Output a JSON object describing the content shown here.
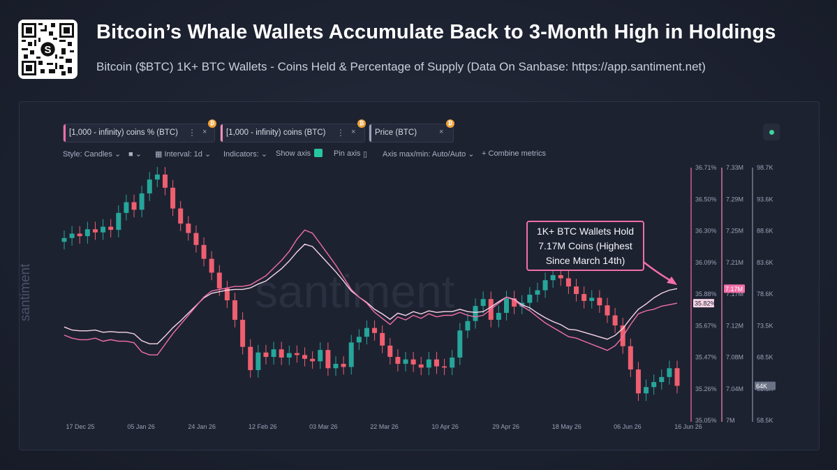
{
  "header": {
    "title": "Bitcoin’s Whale Wallets Accumulate Back to 3-Month High in Holdings",
    "subtitle": "Bitcoin ($BTC) 1K+ BTC Wallets - Coins Held & Percentage of Supply (Data On Sanbase: https://app.santiment.net)"
  },
  "metric_tabs": [
    {
      "label": "[1,000 - infinity) coins % (BTC)",
      "color": "#f26fa8"
    },
    {
      "label": "[1,000 - infinity) coins (BTC)",
      "color": "#f48fb8"
    },
    {
      "label": "Price (BTC)",
      "color": "#9aa2b5"
    }
  ],
  "toolbar": {
    "style": "Style: Candles",
    "interval": "Interval: 1d",
    "indicators": "Indicators:",
    "show_axis": "Show axis",
    "pin_axis": "Pin axis",
    "axis_minmax": "Axis max/min: Auto/Auto",
    "combine": "Combine metrics"
  },
  "watermark": "santiment",
  "annotation": {
    "lines": [
      "1K+ BTC Wallets Hold",
      "7.17M Coins (Highest",
      "Since March 14th)"
    ]
  },
  "colors": {
    "up_candle": "#26a69a",
    "down_candle": "#ef5f6f",
    "pct_line": "#f26fa8",
    "coins_line": "#f7d6e6",
    "panel_bg": "#1d2231"
  },
  "chart_data": {
    "type": "line",
    "x_ticks": [
      "17 Dec 25",
      "05 Jan 26",
      "24 Jan 26",
      "12 Feb 26",
      "03 Mar 26",
      "22 Mar 26",
      "10 Apr 26",
      "29 Apr 26",
      "18 May 26",
      "06 Jun 26",
      "16 Jun 26"
    ],
    "axes": {
      "pct": {
        "ticks": [
          "36.71%",
          "36.50%",
          "36.30%",
          "36.09%",
          "35.88%",
          "35.67%",
          "35.47%",
          "35.26%",
          "35.05%"
        ],
        "range": [
          35.05,
          36.71
        ],
        "last_label": "35.82%"
      },
      "coins": {
        "ticks": [
          "7.33M",
          "7.29M",
          "7.25M",
          "7.21M",
          "7.17M",
          "7.12M",
          "7.08M",
          "7.04M",
          "7M"
        ],
        "range": [
          7.0,
          7.33
        ],
        "last_label": "7.17M"
      },
      "price": {
        "ticks": [
          "98.7K",
          "93.6K",
          "88.6K",
          "83.6K",
          "78.6K",
          "73.5K",
          "68.5K",
          "63.5K",
          "58.5K"
        ],
        "range": [
          58.5,
          98.7
        ],
        "last_label": "64K"
      }
    },
    "series": [
      {
        "name": "[1,000 - infinity) coins % (BTC)",
        "axis": "pct",
        "values": [
          35.61,
          35.59,
          35.58,
          35.58,
          35.59,
          35.57,
          35.58,
          35.57,
          35.57,
          35.56,
          35.5,
          35.48,
          35.48,
          35.55,
          35.62,
          35.68,
          35.74,
          35.8,
          35.86,
          35.9,
          35.91,
          35.92,
          35.93,
          35.93,
          35.94,
          35.97,
          36.0,
          36.05,
          36.1,
          36.16,
          36.24,
          36.3,
          36.28,
          36.21,
          36.14,
          36.07,
          35.99,
          35.91,
          35.86,
          35.82,
          35.76,
          35.72,
          35.68,
          35.73,
          35.71,
          35.74,
          35.72,
          35.75,
          35.73,
          35.74,
          35.74,
          35.76,
          35.74,
          35.73,
          35.74,
          35.78,
          35.82,
          35.86,
          35.84,
          35.8,
          35.77,
          35.73,
          35.69,
          35.66,
          35.63,
          35.6,
          35.59,
          35.57,
          35.55,
          35.53,
          35.51,
          35.54,
          35.6,
          35.68,
          35.75,
          35.77,
          35.78,
          35.8,
          35.81,
          35.82
        ]
      },
      {
        "name": "[1,000 - infinity) coins (BTC)",
        "axis": "coins",
        "values": [
          7.122,
          7.118,
          7.117,
          7.117,
          7.118,
          7.115,
          7.116,
          7.115,
          7.115,
          7.113,
          7.104,
          7.1,
          7.1,
          7.11,
          7.121,
          7.13,
          7.14,
          7.15,
          7.16,
          7.166,
          7.168,
          7.17,
          7.171,
          7.171,
          7.173,
          7.178,
          7.182,
          7.19,
          7.198,
          7.208,
          7.22,
          7.23,
          7.227,
          7.216,
          7.205,
          7.194,
          7.182,
          7.169,
          7.161,
          7.154,
          7.145,
          7.139,
          7.132,
          7.14,
          7.137,
          7.142,
          7.139,
          7.143,
          7.141,
          7.142,
          7.142,
          7.145,
          7.142,
          7.141,
          7.142,
          7.148,
          7.155,
          7.161,
          7.158,
          7.151,
          7.147,
          7.14,
          7.134,
          7.129,
          7.125,
          7.119,
          7.118,
          7.115,
          7.112,
          7.109,
          7.106,
          7.111,
          7.12,
          7.133,
          7.145,
          7.152,
          7.16,
          7.166,
          7.17,
          7.172
        ]
      },
      {
        "name": "Price (BTC)",
        "axis": "price",
        "values": [
          87.5,
          88.2,
          87.8,
          88.9,
          88.4,
          89.3,
          88.8,
          91.5,
          93.2,
          92.0,
          94.6,
          96.8,
          97.6,
          95.5,
          92.2,
          89.8,
          88.3,
          86.4,
          84.2,
          82.0,
          79.5,
          77.6,
          74.5,
          70.2,
          66.5,
          69.3,
          68.6,
          69.8,
          68.5,
          69.2,
          68.9,
          68.3,
          67.9,
          69.7,
          66.8,
          67.5,
          67.0,
          70.9,
          71.8,
          73.2,
          72.4,
          70.4,
          68.6,
          67.5,
          68.2,
          67.4,
          66.9,
          68.2,
          67.1,
          66.9,
          68.5,
          72.8,
          74.3,
          76.7,
          77.8,
          74.5,
          75.6,
          77.9,
          76.6,
          77.2,
          78.5,
          79.2,
          80.8,
          81.6,
          81.1,
          79.8,
          78.6,
          77.5,
          78.0,
          76.8,
          75.2,
          73.6,
          70.3,
          66.6,
          62.8,
          63.8,
          64.6,
          65.4,
          66.8,
          64.0
        ]
      }
    ],
    "candles": {
      "name": "Price (BTC)",
      "axis": "price",
      "values": [
        87.5,
        88.2,
        87.8,
        88.9,
        88.4,
        89.3,
        88.8,
        91.5,
        93.2,
        92.0,
        94.6,
        96.8,
        97.6,
        95.5,
        92.2,
        89.8,
        88.3,
        86.4,
        84.2,
        82.0,
        79.5,
        77.6,
        74.5,
        70.2,
        66.5,
        69.3,
        68.6,
        69.8,
        68.5,
        69.2,
        68.9,
        68.3,
        67.9,
        69.7,
        66.8,
        67.5,
        67.0,
        70.9,
        71.8,
        73.2,
        72.4,
        70.4,
        68.6,
        67.5,
        68.2,
        67.4,
        66.9,
        68.2,
        67.1,
        66.9,
        68.5,
        72.8,
        74.3,
        76.7,
        77.8,
        74.5,
        75.6,
        77.9,
        76.6,
        77.2,
        78.5,
        79.2,
        80.8,
        81.6,
        81.1,
        79.8,
        78.6,
        77.5,
        78.0,
        76.8,
        75.2,
        73.6,
        70.3,
        66.6,
        62.8,
        63.8,
        64.6,
        65.4,
        66.8,
        64.0
      ]
    },
    "grid": false,
    "legend": "top-left"
  }
}
